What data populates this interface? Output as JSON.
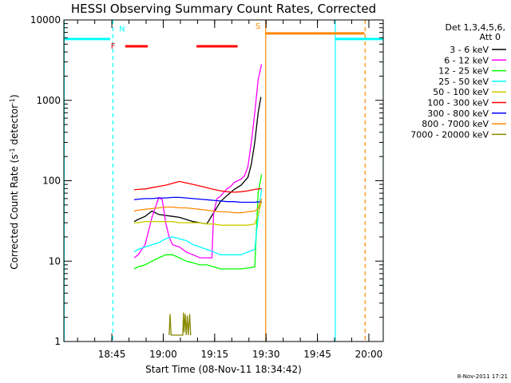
{
  "chart_data": {
    "type": "line",
    "title": "HESSI Observing Summary Count Rates, Corrected",
    "xlabel": "Start Time (08-Nov-11 18:34:42)",
    "ylabel": "Corrected Count Rate (s",
    "ylabel_sup1": "-1",
    "ylabel_mid": " detector",
    "ylabel_sup2": "-1",
    "ylabel_end": ")",
    "y_scale": "log",
    "ylim": [
      1,
      10000
    ],
    "xlim_minutes": [
      -3.7,
      89.5
    ],
    "y_ticks": [
      {
        "value": 1,
        "label": "1"
      },
      {
        "value": 10,
        "label": "10"
      },
      {
        "value": 100,
        "label": "100"
      },
      {
        "value": 1000,
        "label": "1000"
      },
      {
        "value": 10000,
        "label": "10000"
      }
    ],
    "x_ticks": [
      {
        "value": 10.3,
        "label": "18:45"
      },
      {
        "value": 25.3,
        "label": "19:00"
      },
      {
        "value": 40.3,
        "label": "19:15"
      },
      {
        "value": 55.3,
        "label": "19:30"
      },
      {
        "value": 70.3,
        "label": "19:45"
      },
      {
        "value": 85.3,
        "label": "20:00"
      }
    ],
    "legend_header": [
      "Det 1,3,4,5,6,",
      "Att 0"
    ],
    "legend_position": "right",
    "series": [
      {
        "name": "3 - 6 keV",
        "color": "#000000",
        "points": [
          [
            16.8,
            31
          ],
          [
            18,
            33
          ],
          [
            20,
            36
          ],
          [
            22,
            42
          ],
          [
            24,
            38
          ],
          [
            26,
            37
          ],
          [
            28,
            36
          ],
          [
            30,
            35
          ],
          [
            32,
            33
          ],
          [
            34,
            31
          ],
          [
            36,
            30
          ],
          [
            38,
            29
          ],
          [
            40,
            40
          ],
          [
            42,
            55
          ],
          [
            44,
            66
          ],
          [
            46,
            78
          ],
          [
            48,
            88
          ],
          [
            50,
            110
          ],
          [
            51,
            160
          ],
          [
            52,
            300
          ],
          [
            53,
            700
          ],
          [
            53.8,
            1100
          ]
        ]
      },
      {
        "name": "6 - 12 keV",
        "color": "#ff00ff",
        "points": [
          [
            16.8,
            11
          ],
          [
            18,
            12
          ],
          [
            20,
            16
          ],
          [
            22,
            35
          ],
          [
            24,
            62
          ],
          [
            25,
            58
          ],
          [
            26,
            30
          ],
          [
            27,
            20
          ],
          [
            28,
            16
          ],
          [
            30,
            15
          ],
          [
            32,
            13
          ],
          [
            34,
            12
          ],
          [
            36,
            11
          ],
          [
            38,
            11
          ],
          [
            39.5,
            11
          ],
          [
            40,
            40
          ],
          [
            41,
            60
          ],
          [
            42,
            64
          ],
          [
            43,
            72
          ],
          [
            44,
            80
          ],
          [
            45,
            85
          ],
          [
            46,
            95
          ],
          [
            47,
            100
          ],
          [
            48,
            105
          ],
          [
            49,
            115
          ],
          [
            50,
            150
          ],
          [
            51,
            300
          ],
          [
            52,
            700
          ],
          [
            53,
            1800
          ],
          [
            54,
            2800
          ]
        ]
      },
      {
        "name": "12 - 25 keV",
        "color": "#00ff00",
        "points": [
          [
            16.8,
            8
          ],
          [
            18,
            8.5
          ],
          [
            20,
            9
          ],
          [
            22,
            10
          ],
          [
            24,
            11
          ],
          [
            26,
            12
          ],
          [
            28,
            12
          ],
          [
            30,
            11
          ],
          [
            32,
            10
          ],
          [
            34,
            9.5
          ],
          [
            36,
            9
          ],
          [
            38,
            9
          ],
          [
            40,
            8.5
          ],
          [
            42,
            8
          ],
          [
            44,
            8
          ],
          [
            46,
            8
          ],
          [
            48,
            8
          ],
          [
            50,
            8.2
          ],
          [
            52,
            8.5
          ],
          [
            53,
            70
          ],
          [
            54,
            120
          ]
        ]
      },
      {
        "name": "25 - 50 keV",
        "color": "#00ffff",
        "points": [
          [
            16.8,
            13
          ],
          [
            18,
            14
          ],
          [
            20,
            15
          ],
          [
            22,
            16
          ],
          [
            24,
            17
          ],
          [
            26,
            19
          ],
          [
            28,
            20
          ],
          [
            30,
            19
          ],
          [
            32,
            18
          ],
          [
            34,
            16
          ],
          [
            36,
            15
          ],
          [
            38,
            14
          ],
          [
            40,
            13
          ],
          [
            42,
            12
          ],
          [
            44,
            12
          ],
          [
            46,
            12
          ],
          [
            48,
            12
          ],
          [
            50,
            13
          ],
          [
            52,
            14
          ],
          [
            53,
            35
          ],
          [
            54,
            80
          ]
        ]
      },
      {
        "name": "50 - 100 keV",
        "color": "#cccc00",
        "points": [
          [
            16.8,
            30
          ],
          [
            18,
            30
          ],
          [
            20,
            31
          ],
          [
            22,
            31
          ],
          [
            24,
            31
          ],
          [
            26,
            31
          ],
          [
            28,
            31
          ],
          [
            30,
            30
          ],
          [
            32,
            30
          ],
          [
            34,
            30
          ],
          [
            36,
            30
          ],
          [
            38,
            29
          ],
          [
            40,
            29
          ],
          [
            42,
            28
          ],
          [
            44,
            28
          ],
          [
            46,
            28
          ],
          [
            48,
            28
          ],
          [
            50,
            28
          ],
          [
            52,
            29
          ],
          [
            53,
            38
          ],
          [
            54,
            55
          ]
        ]
      },
      {
        "name": "100 - 300 keV",
        "color": "#ff0000",
        "points": [
          [
            16.8,
            77
          ],
          [
            18,
            78
          ],
          [
            20,
            79
          ],
          [
            22,
            82
          ],
          [
            24,
            85
          ],
          [
            26,
            88
          ],
          [
            28,
            93
          ],
          [
            30,
            98
          ],
          [
            32,
            94
          ],
          [
            34,
            90
          ],
          [
            36,
            86
          ],
          [
            38,
            82
          ],
          [
            40,
            78
          ],
          [
            42,
            75
          ],
          [
            44,
            73
          ],
          [
            46,
            72
          ],
          [
            48,
            73
          ],
          [
            50,
            75
          ],
          [
            52,
            78
          ],
          [
            54,
            80
          ]
        ]
      },
      {
        "name": "300 - 800 keV",
        "color": "#0000ff",
        "points": [
          [
            16.8,
            58
          ],
          [
            18,
            59
          ],
          [
            20,
            60
          ],
          [
            22,
            60
          ],
          [
            24,
            61
          ],
          [
            26,
            61
          ],
          [
            28,
            62
          ],
          [
            30,
            62
          ],
          [
            32,
            61
          ],
          [
            34,
            60
          ],
          [
            36,
            59
          ],
          [
            38,
            58
          ],
          [
            40,
            57
          ],
          [
            42,
            56
          ],
          [
            44,
            55
          ],
          [
            46,
            55
          ],
          [
            48,
            54
          ],
          [
            50,
            54
          ],
          [
            52,
            54
          ],
          [
            54,
            55
          ]
        ]
      },
      {
        "name": "800 - 7000 keV",
        "color": "#ff8800",
        "points": [
          [
            16.8,
            42
          ],
          [
            18,
            43
          ],
          [
            20,
            44
          ],
          [
            22,
            45
          ],
          [
            24,
            46
          ],
          [
            26,
            47
          ],
          [
            28,
            47
          ],
          [
            30,
            46
          ],
          [
            32,
            46
          ],
          [
            34,
            45
          ],
          [
            36,
            44
          ],
          [
            38,
            43
          ],
          [
            40,
            42
          ],
          [
            42,
            41
          ],
          [
            44,
            41
          ],
          [
            46,
            40
          ],
          [
            48,
            40
          ],
          [
            50,
            41
          ],
          [
            52,
            42
          ],
          [
            53,
            45
          ],
          [
            54,
            60
          ]
        ]
      },
      {
        "name": "7000 - 20000 keV",
        "color": "#888800",
        "points": [
          [
            27,
            1.2
          ],
          [
            27.3,
            2.2
          ],
          [
            27.6,
            1.2
          ],
          [
            31,
            1.2
          ],
          [
            31.2,
            2.3
          ],
          [
            31.4,
            1.3
          ],
          [
            31.7,
            2.2
          ],
          [
            32,
            1.2
          ],
          [
            32.3,
            2.1
          ],
          [
            32.6,
            1.2
          ],
          [
            33,
            2.2
          ],
          [
            33.3,
            1.2
          ]
        ]
      }
    ],
    "intervals": [
      {
        "flag": "",
        "type": "night",
        "color": "#00ffff",
        "y": 5800,
        "x_ranges": [
          [
            -3.7,
            9.8
          ],
          [
            75.5,
            89.5
          ]
        ]
      },
      {
        "flag": "F",
        "type": "flare",
        "color": "#ff0000",
        "y": 4700,
        "x_ranges": [
          [
            14.2,
            20.8
          ],
          [
            35,
            47
          ]
        ]
      },
      {
        "flag": "S",
        "type": "saa",
        "color": "#ff8800",
        "y": 6800,
        "x_ranges": [
          [
            55,
            84
          ]
        ]
      }
    ],
    "labels": [
      "N",
      "F",
      "S"
    ],
    "vertical_markers": [
      {
        "x": -3.6,
        "color": "#00ffff",
        "style": "solid"
      },
      {
        "x": 10.6,
        "color": "#00ffff",
        "style": "dashed"
      },
      {
        "x": 55.2,
        "color": "#ff8800",
        "style": "solid"
      },
      {
        "x": 75.5,
        "color": "#00ffff",
        "style": "solid"
      },
      {
        "x": 84.2,
        "color": "#ff8800",
        "style": "dashed"
      },
      {
        "x": 89.5,
        "color": "#00ffff",
        "style": "dashed"
      }
    ],
    "grid": false
  },
  "footer_stamp": "8-Nov-2011 17:21"
}
